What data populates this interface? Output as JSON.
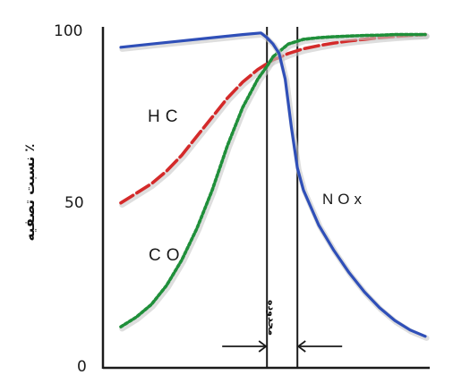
{
  "chart_data": {
    "type": "line",
    "title": "",
    "xlabel": "",
    "ylabel": "نسبت تصفیه ٪",
    "ylim": [
      0,
      100
    ],
    "xlim": [
      0,
      100
    ],
    "grid": false,
    "y_ticks": [
      "0",
      "50",
      "100"
    ],
    "window_label": "محدوده",
    "window_range": [
      48,
      58
    ],
    "colors": {
      "CO": "#1f8f3a",
      "HC": "#d42a2a",
      "NOx": "#2f4fb8",
      "axis": "#1a1a1a"
    },
    "series": [
      {
        "name": "HC",
        "style": "dashed",
        "x": [
          0,
          5,
          10,
          15,
          20,
          25,
          30,
          35,
          40,
          45,
          50,
          55,
          60,
          65,
          70,
          75,
          80,
          85,
          90,
          95,
          100
        ],
        "y": [
          46,
          49,
          52,
          56,
          61,
          67,
          73,
          79,
          84,
          88,
          91,
          93,
          94.5,
          95.5,
          96.3,
          97,
          97.5,
          98,
          98.4,
          98.7,
          99
        ]
      },
      {
        "name": "CO",
        "style": "dotted",
        "x": [
          0,
          5,
          10,
          15,
          20,
          25,
          30,
          35,
          40,
          45,
          48,
          50,
          55,
          60,
          65,
          70,
          75,
          80,
          85,
          90,
          95,
          100
        ],
        "y": [
          7,
          10,
          14,
          20,
          28,
          38,
          50,
          64,
          76,
          85,
          89,
          92,
          96,
          97.5,
          98,
          98.3,
          98.5,
          98.7,
          98.8,
          99,
          99,
          99
        ]
      },
      {
        "name": "NOx",
        "style": "solid",
        "x": [
          0,
          10,
          20,
          30,
          40,
          46,
          48,
          50,
          52,
          54,
          56,
          58,
          60,
          65,
          70,
          75,
          80,
          85,
          90,
          95,
          100
        ],
        "y": [
          95,
          96,
          97,
          98,
          99,
          99.5,
          98,
          96,
          93,
          85,
          70,
          57,
          50,
          39,
          31,
          24,
          18,
          13,
          9,
          6,
          4
        ]
      }
    ]
  }
}
